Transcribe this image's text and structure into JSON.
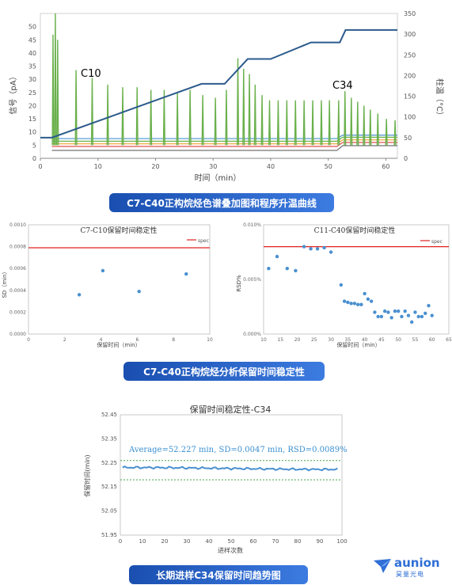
{
  "colors": {
    "navy": "#2f4a86",
    "banner_from": "#1a4fb0",
    "banner_to": "#3c7be0",
    "green": "#6ab04c",
    "blue": "#4a90d0",
    "red": "#e02020",
    "ramp": "#2c5b8c"
  },
  "chart_data": [
    {
      "type": "line",
      "id": "chromatogram",
      "xlabel": "时间（min）",
      "ylabel": "信号（pA）",
      "y2label": "柱温（°C）",
      "xlim": [
        0,
        62
      ],
      "ylim": [
        0,
        55
      ],
      "y2lim": [
        0,
        350
      ],
      "xticks": [
        0,
        10,
        20,
        30,
        40,
        50,
        60
      ],
      "yticks": [
        0,
        5,
        10,
        15,
        20,
        25,
        30,
        35,
        40,
        45,
        50
      ],
      "y2ticks": [
        0,
        50,
        100,
        150,
        200,
        250,
        300,
        350
      ],
      "annotations": [
        {
          "text": "C10",
          "x": 9,
          "y": 32
        },
        {
          "text": "C34",
          "x": 52,
          "y": 27
        }
      ],
      "peaks_signal": {
        "rt": [
          2.2,
          2.6,
          3.0,
          6.2,
          9.0,
          11.7,
          14.3,
          16.8,
          19.2,
          21.5,
          23.8,
          26.0,
          28.2,
          30.4,
          32.3,
          34.3,
          35.3,
          36.3,
          37.3,
          38.5,
          39.8,
          41.3,
          42.8,
          44.3,
          45.8,
          47.3,
          48.8,
          50.2,
          51.8,
          52.9,
          54.0,
          55.1,
          56.2,
          57.3,
          58.6,
          60.1,
          61.6
        ],
        "height": [
          47,
          55,
          45,
          33.5,
          30.5,
          28,
          27,
          27,
          26,
          26,
          25,
          26,
          24,
          23,
          26,
          38,
          34,
          32,
          28,
          24,
          22,
          22,
          22,
          22,
          22,
          22,
          22,
          22,
          22,
          25.5,
          23,
          21.5,
          20,
          18.5,
          17,
          15,
          14.5
        ]
      },
      "baselines": [
        {
          "color": "#4a90d0",
          "y_start": 7.5,
          "y_end": 8.8
        },
        {
          "color": "#6ab04c",
          "y_start": 6.5,
          "y_end": 8.0
        },
        {
          "color": "#f0a030",
          "y_start": 5.5,
          "y_end": 7.0
        },
        {
          "color": "#e05050",
          "y_start": 4.5,
          "y_end": 6.0
        },
        {
          "color": "#707070",
          "y_start": 3.0,
          "y_end": 4.8
        }
      ],
      "temperature_program": {
        "x": [
          0,
          2,
          28,
          32,
          36,
          40,
          47,
          52,
          53,
          62
        ],
        "y": [
          50,
          50,
          180,
          180,
          240,
          240,
          280,
          280,
          310,
          310
        ]
      }
    },
    {
      "type": "scatter",
      "id": "c7_c10",
      "title": "C7-C10保留时间稳定性",
      "xlabel": "保留时间（min）",
      "ylabel": "SD（min）",
      "xlim": [
        0,
        10
      ],
      "ylim": [
        0,
        0.001
      ],
      "xticks": [
        0,
        2,
        4,
        6,
        8,
        10
      ],
      "yticks": [
        0,
        0.0002,
        0.0004,
        0.0006,
        0.0008,
        0.001
      ],
      "ytick_labels": [
        "0.0000",
        "0.0002",
        "0.0004",
        "0.0006",
        "0.0008",
        "0.0010"
      ],
      "spec_line": 0.00079,
      "legend": "spec",
      "x": [
        2.8,
        4.1,
        6.1,
        8.7
      ],
      "y": [
        0.00036,
        0.00058,
        0.00039,
        0.00055
      ]
    },
    {
      "type": "scatter",
      "id": "c11_c40",
      "title": "C11-C40保留时间稳定性",
      "xlabel": "保留时间（min）",
      "ylabel": "RSD%",
      "xlim": [
        10,
        65
      ],
      "ylim": [
        0,
        0.01
      ],
      "xticks": [
        10,
        15,
        20,
        25,
        30,
        35,
        40,
        45,
        50,
        55,
        60,
        65
      ],
      "yticks": [
        0,
        0.005,
        0.01
      ],
      "ytick_labels": [
        "0.000%",
        "0.005%",
        "0.010%"
      ],
      "spec_line": 0.008,
      "legend": "spec",
      "x": [
        11.5,
        14,
        17,
        19.5,
        22,
        24,
        26,
        28,
        30,
        33,
        34,
        35,
        36,
        37,
        38,
        39,
        40,
        41,
        42,
        43,
        44,
        45,
        46,
        47,
        48,
        49,
        50,
        51,
        52,
        53,
        54,
        55,
        56,
        57,
        58,
        59,
        60
      ],
      "y": [
        0.006,
        0.0071,
        0.006,
        0.0058,
        0.008,
        0.0078,
        0.0078,
        0.0079,
        0.0075,
        0.0045,
        0.003,
        0.0029,
        0.0028,
        0.0028,
        0.0027,
        0.0027,
        0.0037,
        0.0032,
        0.003,
        0.002,
        0.0016,
        0.0016,
        0.0021,
        0.002,
        0.0015,
        0.0021,
        0.0021,
        0.0016,
        0.0021,
        0.0017,
        0.0011,
        0.002,
        0.0016,
        0.0016,
        0.0019,
        0.0026,
        0.0017
      ]
    },
    {
      "type": "line",
      "id": "c34_trend",
      "title": "保留时间稳定性-C34",
      "xlabel": "进样次数",
      "ylabel": "保留时间(min)",
      "xlim": [
        0,
        100
      ],
      "ylim": [
        51.95,
        52.45
      ],
      "xticks": [
        0,
        10,
        20,
        30,
        40,
        50,
        60,
        70,
        80,
        90,
        100
      ],
      "yticks": [
        51.95,
        52.05,
        52.15,
        52.25,
        52.35,
        52.45
      ],
      "ytick_labels": [
        "51.95",
        "52.05",
        "52.15",
        "52.25",
        "52.35",
        "52.45"
      ],
      "annotation": "Average=52.227 min, SD=0.0047 min, RSD=0.0089%",
      "average": 52.227,
      "sd": 0.0047,
      "limit_lines": [
        52.26,
        52.18
      ],
      "n_points": 98,
      "y_min_range": 52.218,
      "y_max_range": 52.236
    }
  ],
  "captions": {
    "chromatogram": "C7-C40正构烷烃色谱叠加图和程序升温曲线",
    "retention": "C7-C40正构烷烃分析保留时间稳定性",
    "trend": "长期进样C34保留时间趋势图"
  },
  "logo": {
    "text": "aunion",
    "sub": "昊量光电"
  }
}
